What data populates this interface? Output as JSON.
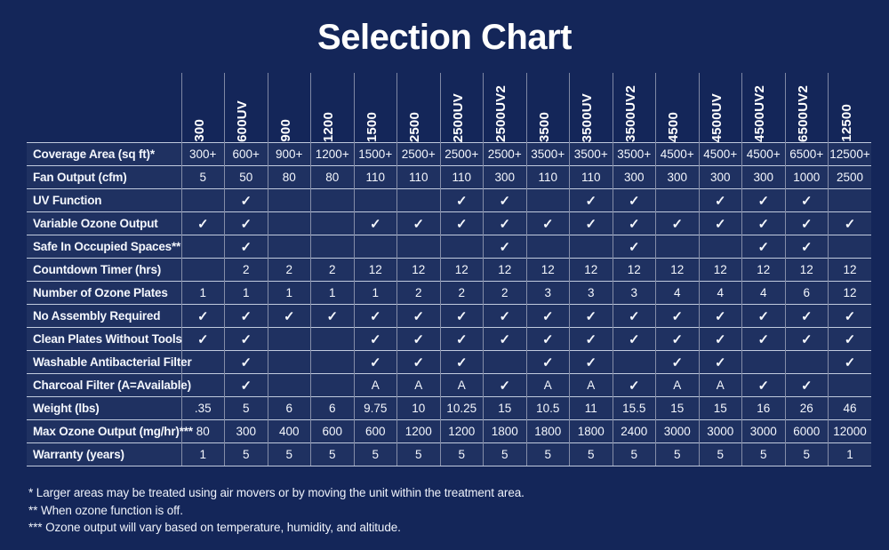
{
  "title": "Selection Chart",
  "chart_data": {
    "type": "table",
    "title": "Selection Chart",
    "columns": [
      "300",
      "600UV",
      "900",
      "1200",
      "1500",
      "2500",
      "2500UV",
      "2500UV2",
      "3500",
      "3500UV",
      "3500UV2",
      "4500",
      "4500UV",
      "4500UV2",
      "6500UV2",
      "12500"
    ],
    "rows": [
      {
        "label": "Coverage Area (sq ft)*",
        "values": [
          "300+",
          "600+",
          "900+",
          "1200+",
          "1500+",
          "2500+",
          "2500+",
          "2500+",
          "3500+",
          "3500+",
          "3500+",
          "4500+",
          "4500+",
          "4500+",
          "6500+",
          "12500+"
        ]
      },
      {
        "label": "Fan Output (cfm)",
        "values": [
          "5",
          "50",
          "80",
          "80",
          "110",
          "110",
          "110",
          "300",
          "110",
          "110",
          "300",
          "300",
          "300",
          "300",
          "1000",
          "2500"
        ]
      },
      {
        "label": "UV Function",
        "values": [
          "",
          "✓",
          "",
          "",
          "",
          "",
          "✓",
          "✓",
          "",
          "✓",
          "✓",
          "",
          "✓",
          "✓",
          "✓",
          ""
        ]
      },
      {
        "label": "Variable Ozone Output",
        "values": [
          "✓",
          "✓",
          "",
          "",
          "✓",
          "✓",
          "✓",
          "✓",
          "✓",
          "✓",
          "✓",
          "✓",
          "✓",
          "✓",
          "✓",
          "✓"
        ]
      },
      {
        "label": "Safe In Occupied Spaces**",
        "values": [
          "",
          "✓",
          "",
          "",
          "",
          "",
          "",
          "✓",
          "",
          "",
          "✓",
          "",
          "",
          "✓",
          "✓",
          ""
        ]
      },
      {
        "label": "Countdown Timer (hrs)",
        "values": [
          "",
          "2",
          "2",
          "2",
          "12",
          "12",
          "12",
          "12",
          "12",
          "12",
          "12",
          "12",
          "12",
          "12",
          "12",
          "12"
        ]
      },
      {
        "label": "Number of Ozone Plates",
        "values": [
          "1",
          "1",
          "1",
          "1",
          "1",
          "2",
          "2",
          "2",
          "3",
          "3",
          "3",
          "4",
          "4",
          "4",
          "6",
          "12"
        ]
      },
      {
        "label": "No Assembly Required",
        "values": [
          "✓",
          "✓",
          "✓",
          "✓",
          "✓",
          "✓",
          "✓",
          "✓",
          "✓",
          "✓",
          "✓",
          "✓",
          "✓",
          "✓",
          "✓",
          "✓"
        ]
      },
      {
        "label": "Clean Plates Without Tools",
        "values": [
          "✓",
          "✓",
          "",
          "",
          "✓",
          "✓",
          "✓",
          "✓",
          "✓",
          "✓",
          "✓",
          "✓",
          "✓",
          "✓",
          "✓",
          "✓"
        ]
      },
      {
        "label": "Washable Antibacterial Filter",
        "values": [
          "",
          "✓",
          "",
          "",
          "✓",
          "✓",
          "✓",
          "",
          "✓",
          "✓",
          "",
          "✓",
          "✓",
          "",
          "",
          "✓"
        ]
      },
      {
        "label": "Charcoal Filter  (A=Available)",
        "values": [
          "",
          "✓",
          "",
          "",
          "A",
          "A",
          "A",
          "✓",
          "A",
          "A",
          "✓",
          "A",
          "A",
          "✓",
          "✓",
          ""
        ]
      },
      {
        "label": "Weight (lbs)",
        "values": [
          ".35",
          "5",
          "6",
          "6",
          "9.75",
          "10",
          "10.25",
          "15",
          "10.5",
          "11",
          "15.5",
          "15",
          "15",
          "16",
          "26",
          "46"
        ]
      },
      {
        "label": "Max Ozone Output (mg/hr)***",
        "values": [
          "80",
          "300",
          "400",
          "600",
          "600",
          "1200",
          "1200",
          "1800",
          "1800",
          "1800",
          "2400",
          "3000",
          "3000",
          "3000",
          "6000",
          "12000"
        ]
      },
      {
        "label": "Warranty (years)",
        "values": [
          "1",
          "5",
          "5",
          "5",
          "5",
          "5",
          "5",
          "5",
          "5",
          "5",
          "5",
          "5",
          "5",
          "5",
          "5",
          "1"
        ]
      }
    ]
  },
  "footnotes": [
    "* Larger areas may be treated using air movers or by moving the unit within the treatment area.",
    "** When ozone function is off.",
    "*** Ozone output will vary based on temperature, humidity, and altitude."
  ],
  "colors": {
    "background": "#142659",
    "grid_horizontal": "#dee6f5",
    "grid_vertical": "#9aaace",
    "text": "#ffffff"
  }
}
